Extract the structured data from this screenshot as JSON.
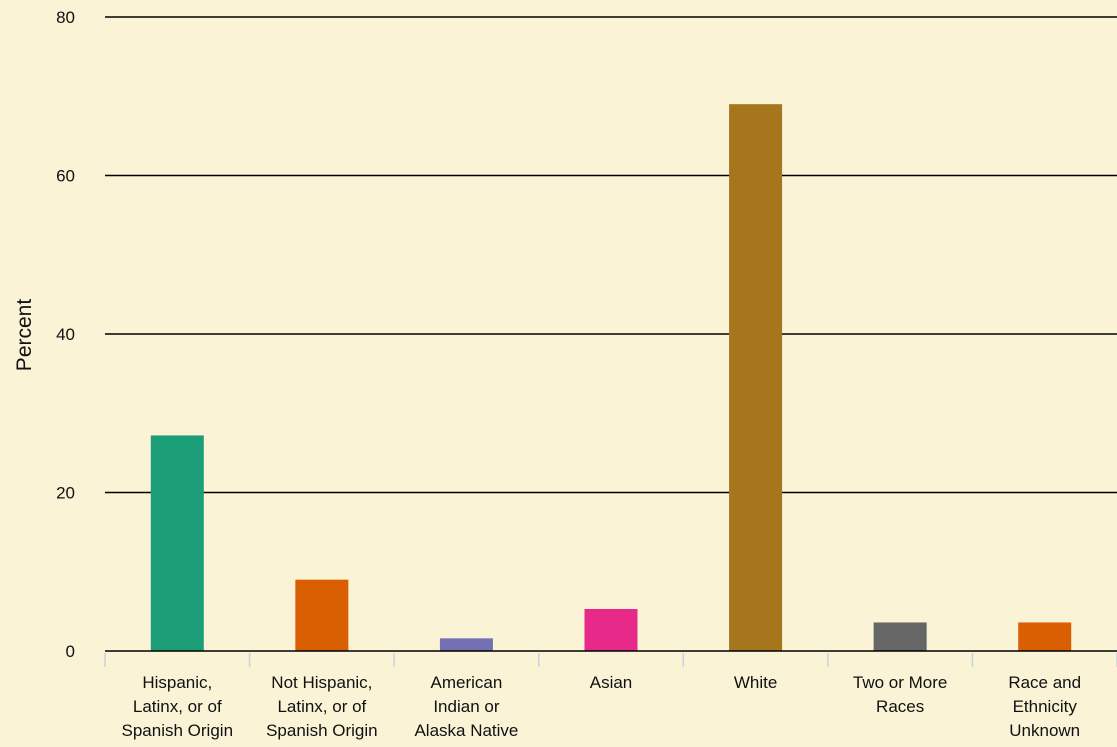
{
  "chart_data": {
    "type": "bar",
    "ylabel": "Percent",
    "xlabel": "",
    "ylim": [
      0,
      80
    ],
    "yticks": [
      0,
      20,
      40,
      60,
      80
    ],
    "grid": true,
    "categories": [
      [
        "Hispanic,",
        "Latinx, or of",
        "Spanish Origin"
      ],
      [
        "Not Hispanic,",
        "Latinx, or of",
        "Spanish Origin"
      ],
      [
        "American",
        "Indian or",
        "Alaska Native"
      ],
      [
        "Asian"
      ],
      [
        "White"
      ],
      [
        "Two or More",
        "Races"
      ],
      [
        "Race and",
        "Ethnicity",
        "Unknown"
      ]
    ],
    "values": [
      27.2,
      9.0,
      1.6,
      5.3,
      69.0,
      3.6,
      3.6
    ],
    "colors": [
      "#1b9e77",
      "#d95f02",
      "#7570b3",
      "#e7298a",
      "#a6761d",
      "#666666",
      "#d95f02"
    ]
  }
}
